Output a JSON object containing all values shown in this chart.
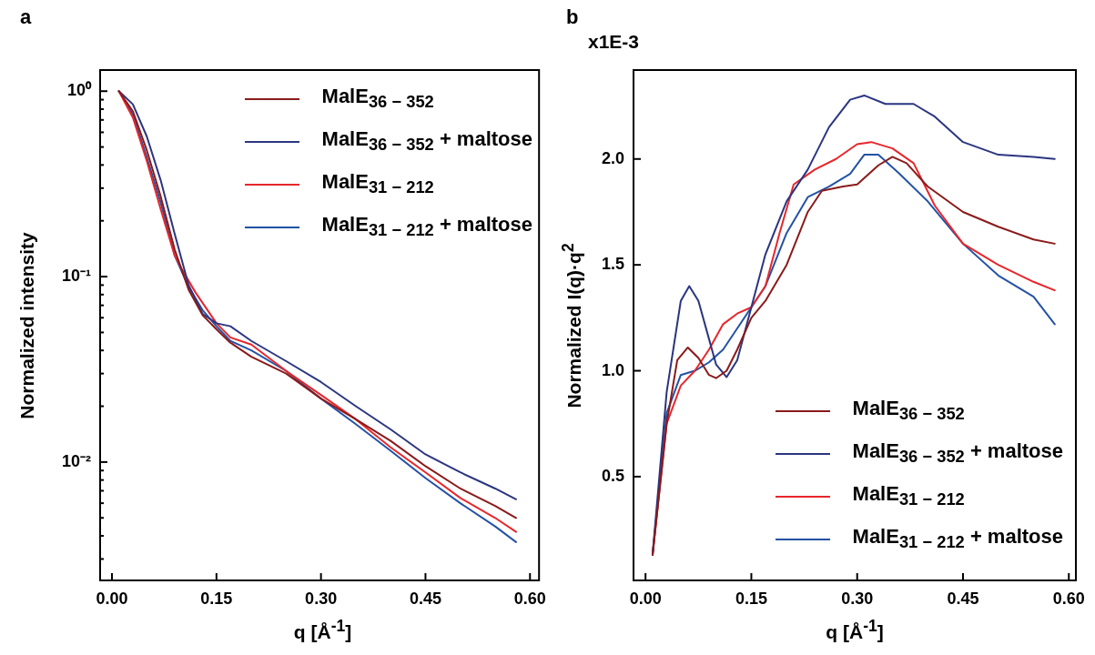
{
  "chart_data": [
    {
      "type": "line",
      "title": "a",
      "xlabel": "q [Å$^{-1}$]",
      "ylabel": "Normalized intensity",
      "log": "y",
      "legend": "top right",
      "grid": false,
      "marker": "none",
      "line_style": "solid",
      "xlim": [
        -0.017,
        0.613
      ],
      "ylim": [
        0.0023,
        1.3
      ],
      "xticks": [
        {
          "value": 0,
          "label": "0.00"
        },
        {
          "value": 0.15,
          "label": "0.15"
        },
        {
          "value": 0.3,
          "label": "0.30"
        },
        {
          "value": 0.45,
          "label": "0.45"
        },
        {
          "value": 0.6,
          "label": "0.60"
        }
      ],
      "yticks": [
        {
          "value": 0.003,
          "label": null
        },
        {
          "value": 0.004,
          "label": null
        },
        {
          "value": 0.005,
          "label": null
        },
        {
          "value": 0.006,
          "label": null
        },
        {
          "value": 0.007,
          "label": null
        },
        {
          "value": 0.008,
          "label": null
        },
        {
          "value": 0.009,
          "label": null
        },
        {
          "value": 0.01,
          "label": "10⁻²"
        },
        {
          "value": 0.02,
          "label": null
        },
        {
          "value": 0.03,
          "label": null
        },
        {
          "value": 0.04,
          "label": null
        },
        {
          "value": 0.05,
          "label": null
        },
        {
          "value": 0.06,
          "label": null
        },
        {
          "value": 0.07,
          "label": null
        },
        {
          "value": 0.08,
          "label": null
        },
        {
          "value": 0.09,
          "label": null
        },
        {
          "value": 0.1,
          "label": "10⁻¹"
        },
        {
          "value": 0.2,
          "label": null
        },
        {
          "value": 0.3,
          "label": null
        },
        {
          "value": 0.4,
          "label": null
        },
        {
          "value": 0.5,
          "label": null
        },
        {
          "value": 0.6,
          "label": null
        },
        {
          "value": 0.7,
          "label": null
        },
        {
          "value": 0.8,
          "label": null
        },
        {
          "value": 0.9,
          "label": null
        },
        {
          "value": 1,
          "label": "10⁰"
        }
      ],
      "series": [
        {
          "name": "MalE$_{36 − 352}$",
          "color": "#8b1a1a",
          "x": [
            0.01,
            0.03,
            0.05,
            0.07,
            0.09,
            0.11,
            0.13,
            0.15,
            0.17,
            0.2,
            0.25,
            0.3,
            0.35,
            0.4,
            0.45,
            0.5,
            0.55,
            0.58
          ],
          "values": [
            1.0,
            0.78,
            0.48,
            0.27,
            0.14,
            0.085,
            0.062,
            0.052,
            0.044,
            0.037,
            0.03,
            0.022,
            0.017,
            0.013,
            0.0095,
            0.0072,
            0.0058,
            0.005
          ]
        },
        {
          "name": "MalE$_{36 − 352}$ + maltose",
          "color": "#2b3580",
          "x": [
            0.01,
            0.03,
            0.05,
            0.07,
            0.09,
            0.11,
            0.13,
            0.15,
            0.17,
            0.2,
            0.25,
            0.3,
            0.35,
            0.4,
            0.45,
            0.5,
            0.55,
            0.58
          ],
          "values": [
            1.0,
            0.85,
            0.57,
            0.33,
            0.17,
            0.09,
            0.063,
            0.056,
            0.054,
            0.045,
            0.035,
            0.027,
            0.02,
            0.015,
            0.011,
            0.0088,
            0.0072,
            0.0063
          ]
        },
        {
          "name": "MalE$_{31 − 212}$",
          "color": "#e8262b",
          "x": [
            0.01,
            0.03,
            0.05,
            0.07,
            0.09,
            0.1,
            0.12,
            0.15,
            0.17,
            0.2,
            0.25,
            0.3,
            0.35,
            0.4,
            0.45,
            0.5,
            0.55,
            0.58
          ],
          "values": [
            1.0,
            0.72,
            0.42,
            0.23,
            0.13,
            0.11,
            0.082,
            0.056,
            0.047,
            0.043,
            0.031,
            0.023,
            0.017,
            0.012,
            0.0088,
            0.0064,
            0.005,
            0.0042
          ]
        },
        {
          "name": "MalE$_{31 − 212}$ + maltose",
          "color": "#2352a5",
          "x": [
            0.01,
            0.03,
            0.05,
            0.07,
            0.09,
            0.11,
            0.13,
            0.15,
            0.17,
            0.2,
            0.25,
            0.3,
            0.35,
            0.4,
            0.45,
            0.5,
            0.55,
            0.58
          ],
          "values": [
            1.0,
            0.75,
            0.44,
            0.25,
            0.13,
            0.088,
            0.066,
            0.054,
            0.045,
            0.04,
            0.031,
            0.022,
            0.016,
            0.0115,
            0.0082,
            0.006,
            0.0045,
            0.0037
          ]
        }
      ]
    },
    {
      "type": "line",
      "title": "b",
      "xlabel": "q [Å$^{-1}$]",
      "ylabel": "Normalized I(q)·q$^{2}$",
      "annotations": [
        "x1E-3"
      ],
      "legend": "bottom right",
      "grid": false,
      "marker": "none",
      "line_style": "solid",
      "xlim": [
        -0.017,
        0.61
      ],
      "ylim": [
        0.01,
        2.42
      ],
      "xticks": [
        {
          "value": 0,
          "label": "0.00"
        },
        {
          "value": 0.15,
          "label": "0.15"
        },
        {
          "value": 0.3,
          "label": "0.30"
        },
        {
          "value": 0.45,
          "label": "0.45"
        },
        {
          "value": 0.6,
          "label": "0.60"
        }
      ],
      "yticks": [
        {
          "value": 0.5,
          "label": "0.5"
        },
        {
          "value": 1,
          "label": "1.0"
        },
        {
          "value": 1.5,
          "label": "1.5"
        },
        {
          "value": 2,
          "label": "2.0"
        }
      ],
      "series": [
        {
          "name": "MalE$_{36 − 352}$",
          "color": "#8b1a1a",
          "x": [
            0.01,
            0.03,
            0.045,
            0.06,
            0.075,
            0.09,
            0.1,
            0.115,
            0.13,
            0.15,
            0.17,
            0.2,
            0.23,
            0.25,
            0.28,
            0.3,
            0.33,
            0.35,
            0.37,
            0.4,
            0.45,
            0.5,
            0.55,
            0.58
          ],
          "values": [
            0.13,
            0.75,
            1.05,
            1.11,
            1.06,
            0.98,
            0.965,
            1.0,
            1.1,
            1.25,
            1.33,
            1.5,
            1.75,
            1.85,
            1.87,
            1.88,
            1.97,
            2.01,
            1.98,
            1.87,
            1.75,
            1.68,
            1.62,
            1.6
          ]
        },
        {
          "name": "MalE$_{36 − 352}$ + maltose",
          "color": "#2b3580",
          "x": [
            0.01,
            0.03,
            0.05,
            0.062,
            0.075,
            0.09,
            0.1,
            0.115,
            0.13,
            0.15,
            0.17,
            0.2,
            0.23,
            0.26,
            0.29,
            0.31,
            0.34,
            0.38,
            0.41,
            0.45,
            0.5,
            0.55,
            0.58
          ],
          "values": [
            0.13,
            0.9,
            1.33,
            1.4,
            1.33,
            1.15,
            1.03,
            0.97,
            1.05,
            1.3,
            1.55,
            1.8,
            1.95,
            2.15,
            2.28,
            2.3,
            2.26,
            2.26,
            2.2,
            2.08,
            2.02,
            2.01,
            2.0
          ]
        },
        {
          "name": "MalE$_{31 − 212}$",
          "color": "#e8262b",
          "x": [
            0.01,
            0.03,
            0.05,
            0.07,
            0.09,
            0.11,
            0.13,
            0.15,
            0.17,
            0.19,
            0.21,
            0.24,
            0.27,
            0.3,
            0.32,
            0.35,
            0.38,
            0.41,
            0.45,
            0.5,
            0.55,
            0.58
          ],
          "values": [
            0.13,
            0.75,
            0.93,
            1.0,
            1.1,
            1.22,
            1.27,
            1.3,
            1.4,
            1.65,
            1.88,
            1.95,
            2.0,
            2.07,
            2.08,
            2.05,
            1.98,
            1.78,
            1.6,
            1.5,
            1.42,
            1.38
          ]
        },
        {
          "name": "MalE$_{31 − 212}$ + maltose",
          "color": "#2352a5",
          "x": [
            0.01,
            0.03,
            0.05,
            0.07,
            0.09,
            0.11,
            0.13,
            0.15,
            0.17,
            0.2,
            0.23,
            0.26,
            0.29,
            0.31,
            0.33,
            0.36,
            0.4,
            0.45,
            0.5,
            0.55,
            0.58
          ],
          "values": [
            0.13,
            0.8,
            0.98,
            1.0,
            1.04,
            1.1,
            1.2,
            1.3,
            1.4,
            1.65,
            1.82,
            1.87,
            1.93,
            2.02,
            2.02,
            1.93,
            1.8,
            1.6,
            1.45,
            1.35,
            1.22
          ]
        }
      ]
    }
  ]
}
